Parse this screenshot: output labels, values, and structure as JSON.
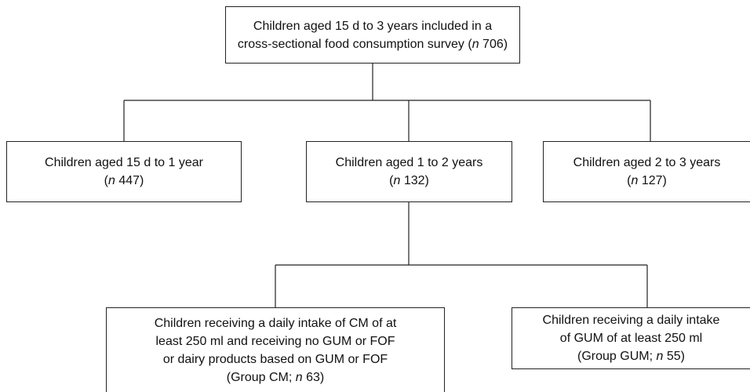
{
  "nodes": [
    {
      "lines": [
        [
          "Children aged 15 d to 3 years included in a"
        ],
        [
          "cross-sectional food consumption survey (",
          "n",
          " 706)"
        ]
      ]
    },
    {
      "lines": [
        [
          "Children aged 15 d to 1 year"
        ],
        [
          "(",
          "n",
          " 447)"
        ]
      ]
    },
    {
      "lines": [
        [
          "Children aged 1 to 2 years"
        ],
        [
          "(",
          "n",
          " 132)"
        ]
      ]
    },
    {
      "lines": [
        [
          "Children aged 2 to 3 years"
        ],
        [
          "(",
          "n",
          " 127)"
        ]
      ]
    },
    {
      "lines": [
        [
          "Children receiving a daily intake of CM of at"
        ],
        [
          "least 250 ml and receiving no GUM or FOF"
        ],
        [
          "or dairy products based on GUM or FOF"
        ],
        [
          "(Group CM; ",
          "n",
          " 63)"
        ]
      ]
    },
    {
      "lines": [
        [
          "Children receiving a daily intake"
        ],
        [
          "of GUM of at least 250 ml"
        ],
        [
          "(Group GUM; ",
          "n",
          " 55)"
        ]
      ]
    }
  ]
}
